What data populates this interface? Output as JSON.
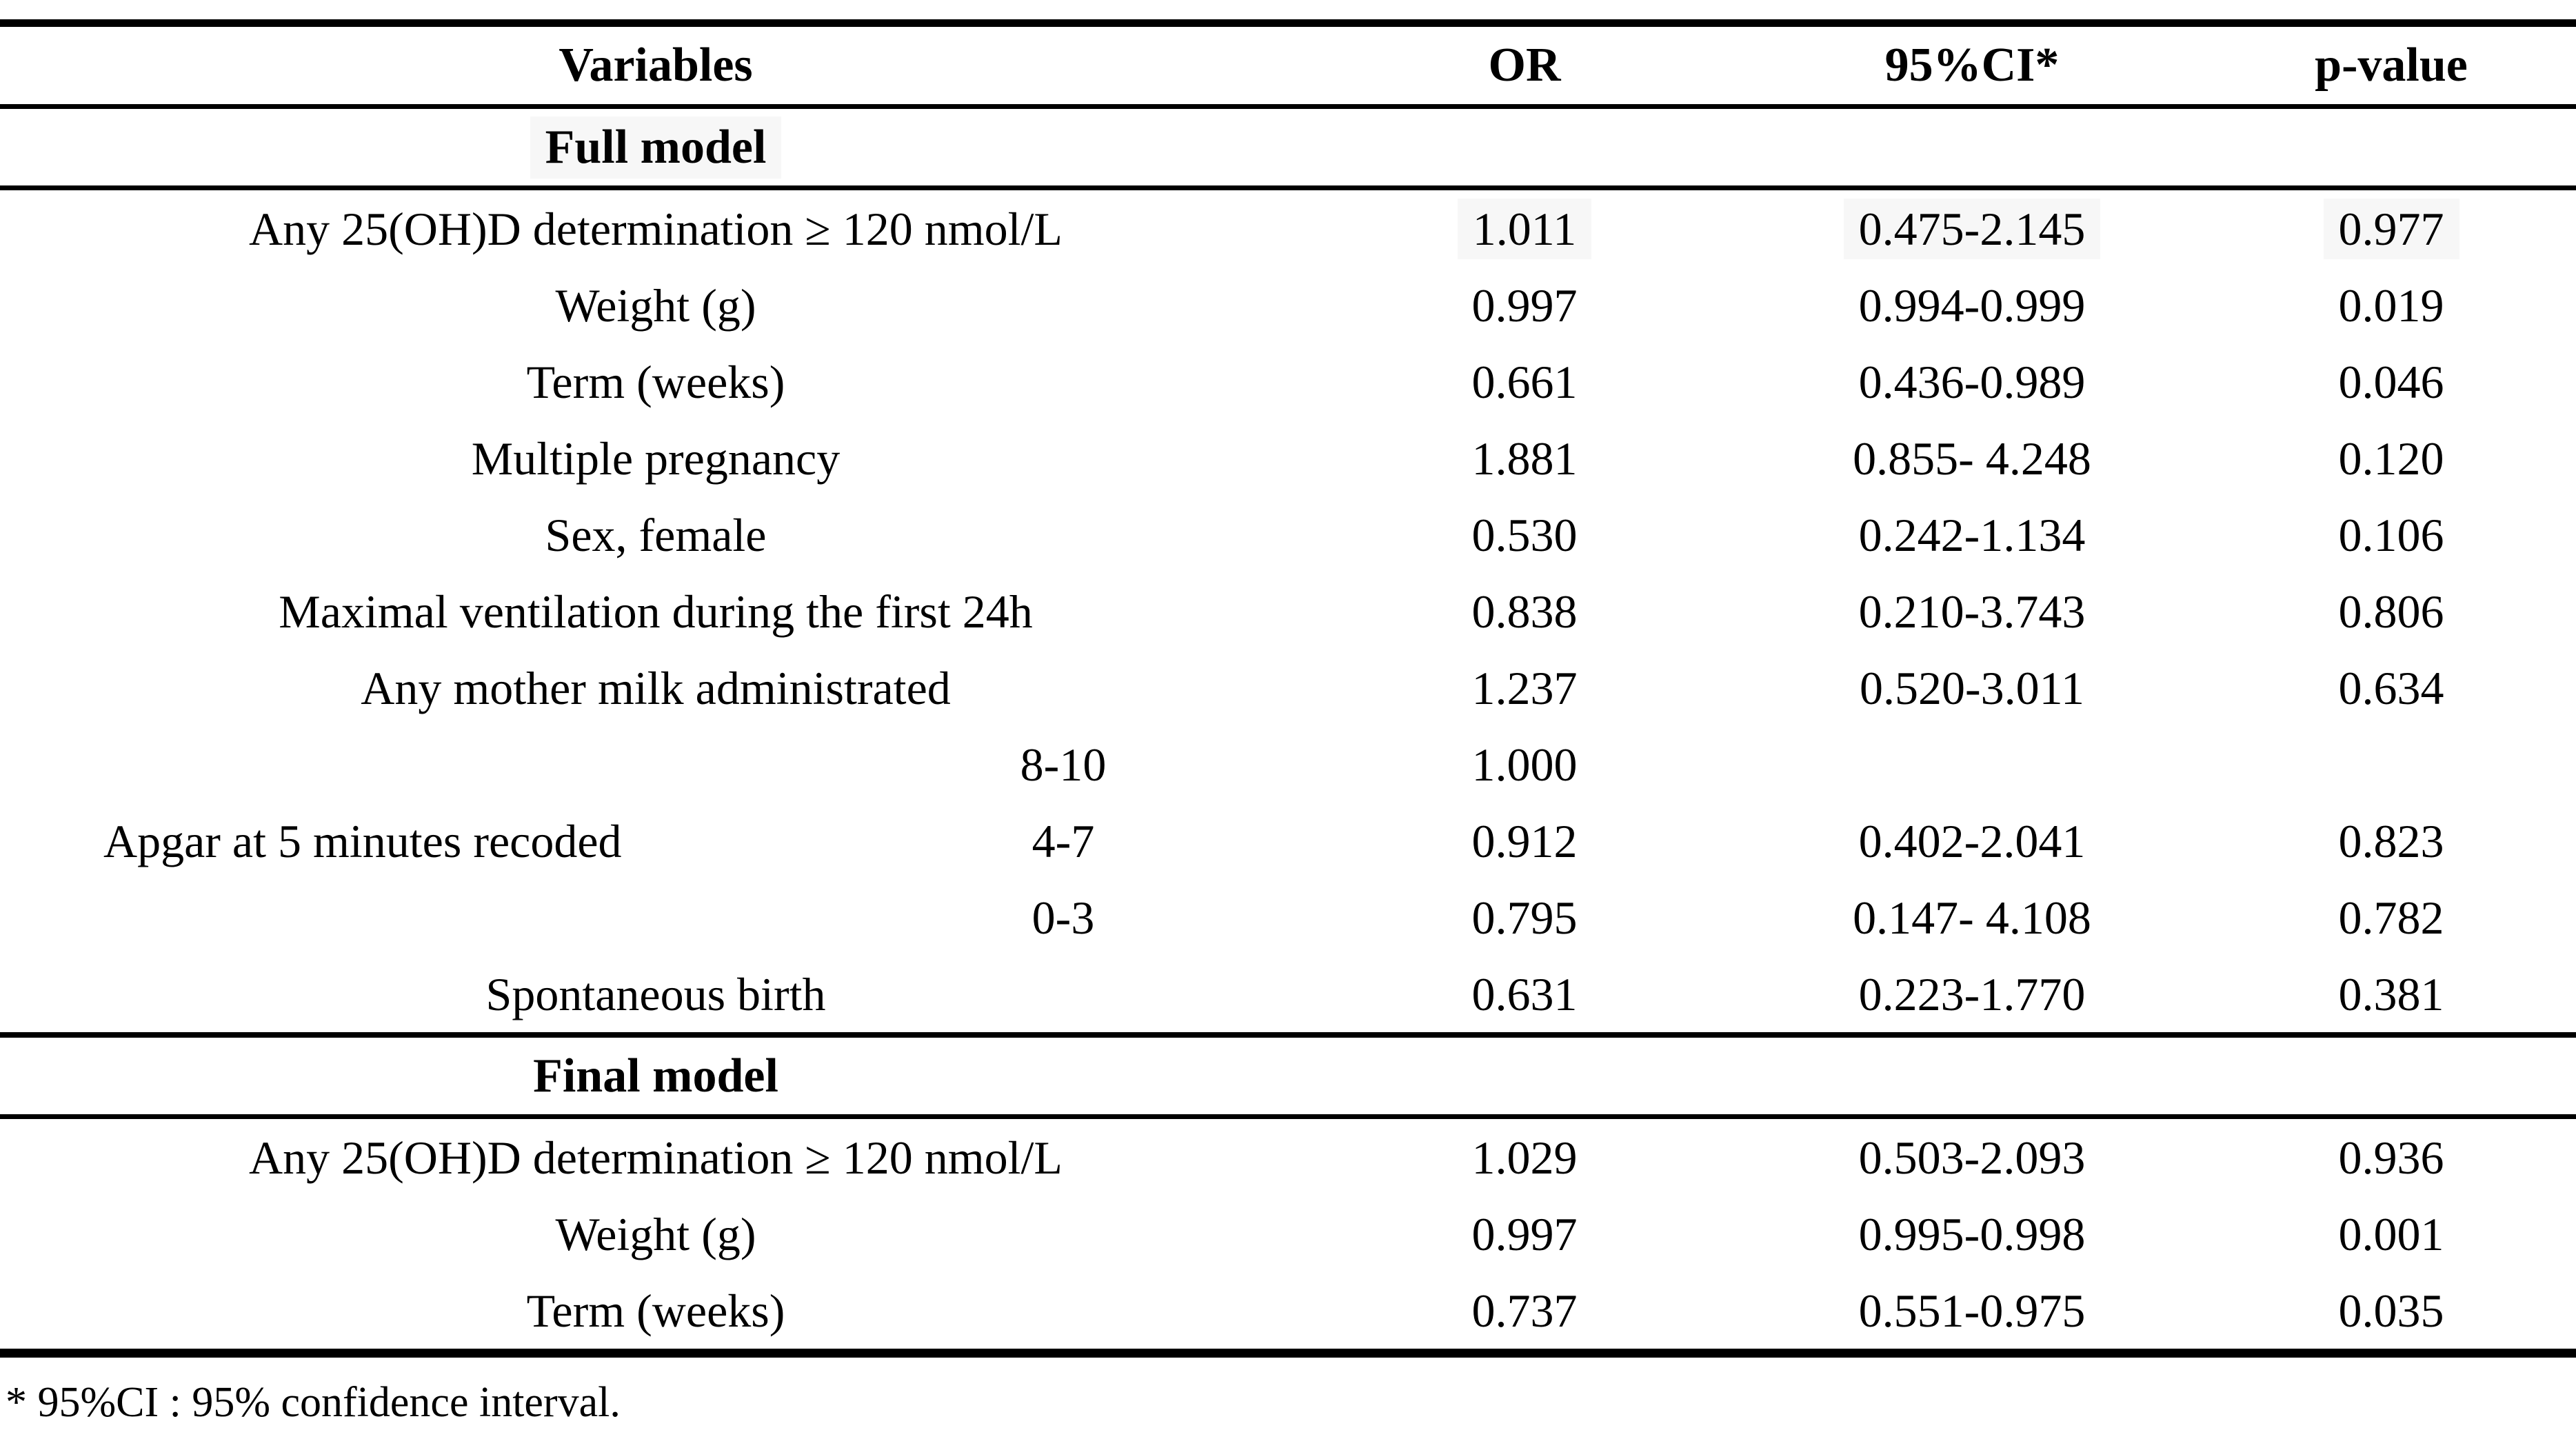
{
  "colors": {
    "highlight": "#f7f7f7",
    "text": "#000000",
    "background": "#ffffff"
  },
  "table": {
    "columns": [
      "Variables",
      "OR",
      "95%CI*",
      "p-value"
    ],
    "sections": [
      {
        "title": "Full model",
        "title_highlight": true,
        "rows": [
          {
            "variable": "Any 25(OH)D determination ≥ 120 nmol/L",
            "or": "1.011",
            "ci": "0.475-2.145",
            "p": "0.977",
            "highlight": true
          },
          {
            "variable": "Weight (g)",
            "or": "0.997",
            "ci": "0.994-0.999",
            "p": "0.019"
          },
          {
            "variable": "Term (weeks)",
            "or": "0.661",
            "ci": "0.436-0.989",
            "p": "0.046"
          },
          {
            "variable": "Multiple pregnancy",
            "or": "1.881",
            "ci": "0.855- 4.248",
            "p": "0.120"
          },
          {
            "variable": "Sex, female",
            "or": "0.530",
            "ci": "0.242-1.134",
            "p": "0.106"
          },
          {
            "variable": "Maximal ventilation during the first 24h",
            "or": "0.838",
            "ci": "0.210-3.743",
            "p": "0.806"
          },
          {
            "variable": "Any mother milk administrated",
            "or": "1.237",
            "ci": "0.520-3.011",
            "p": "0.634"
          },
          {
            "variable": "Apgar at 5 minutes recoded",
            "subrows": [
              {
                "category": "8-10",
                "or": "1.000",
                "ci": "",
                "p": ""
              },
              {
                "category": "4-7",
                "or": "0.912",
                "ci": "0.402-2.041",
                "p": "0.823"
              },
              {
                "category": "0-3",
                "or": "0.795",
                "ci": "0.147- 4.108",
                "p": "0.782"
              }
            ]
          },
          {
            "variable": "Spontaneous birth",
            "or": "0.631",
            "ci": "0.223-1.770",
            "p": "0.381"
          }
        ]
      },
      {
        "title": "Final model",
        "title_highlight": false,
        "rows": [
          {
            "variable": "Any 25(OH)D determination ≥ 120 nmol/L",
            "or": "1.029",
            "ci": "0.503-2.093",
            "p": "0.936"
          },
          {
            "variable": "Weight (g)",
            "or": "0.997",
            "ci": "0.995-0.998",
            "p": "0.001"
          },
          {
            "variable": "Term (weeks)",
            "or": "0.737",
            "ci": "0.551-0.975",
            "p": "0.035"
          }
        ]
      }
    ],
    "footnote": "* 95%CI : 95% confidence interval."
  }
}
